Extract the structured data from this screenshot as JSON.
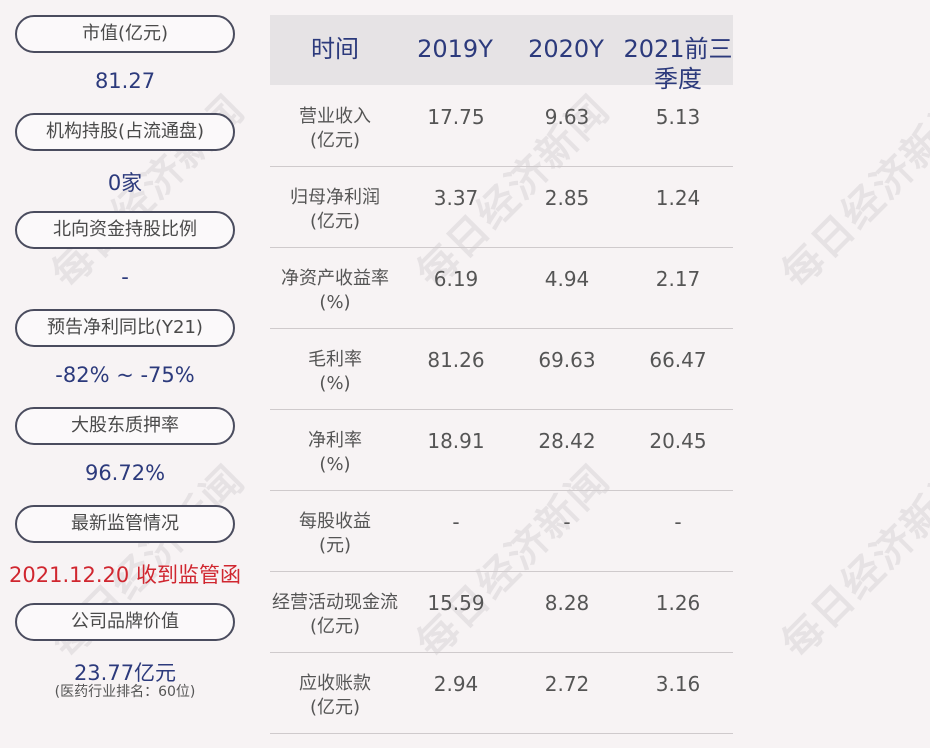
{
  "watermark": "每日经济新闻",
  "metrics": [
    {
      "label": "市值(亿元)",
      "value": "81.27"
    },
    {
      "label": "机构持股(占流通盘)",
      "value": "0家"
    },
    {
      "label": "北向资金持股比例",
      "value": "-"
    },
    {
      "label": "预告净利同比(Y21)",
      "value": "-82% ~ -75%"
    },
    {
      "label": "大股东质押率",
      "value": "96.72%"
    },
    {
      "label": "最新监管情况",
      "value": "2021.12.20 收到监管函"
    },
    {
      "label": "公司品牌价值",
      "value": "23.77亿元",
      "sub": "(医药行业排名：60位)"
    }
  ],
  "table": {
    "headers": [
      "时间",
      "2019Y",
      "2020Y",
      "2021前三季度"
    ],
    "rows": [
      {
        "label": "营业收入",
        "unit": "(亿元)",
        "values": [
          "17.75",
          "9.63",
          "5.13"
        ]
      },
      {
        "label": "归母净利润",
        "unit": "(亿元)",
        "values": [
          "3.37",
          "2.85",
          "1.24"
        ]
      },
      {
        "label": "净资产收益率",
        "unit": "(%)",
        "values": [
          "6.19",
          "4.94",
          "2.17"
        ]
      },
      {
        "label": "毛利率",
        "unit": "(%)",
        "values": [
          "81.26",
          "69.63",
          "66.47"
        ]
      },
      {
        "label": "净利率",
        "unit": "(%)",
        "values": [
          "18.91",
          "28.42",
          "20.45"
        ]
      },
      {
        "label": "每股收益",
        "unit": "(元)",
        "values": [
          "-",
          "-",
          "-"
        ]
      },
      {
        "label": "经营活动现金流",
        "unit": "(亿元)",
        "values": [
          "15.59",
          "8.28",
          "1.26"
        ]
      },
      {
        "label": "应收账款",
        "unit": "(亿元)",
        "values": [
          "2.94",
          "2.72",
          "3.16"
        ]
      }
    ]
  },
  "colors": {
    "accent": "#2c3a7c",
    "alert": "#d0262f",
    "border": "#4a4c5e",
    "header_bg": "#e6e3e5"
  }
}
